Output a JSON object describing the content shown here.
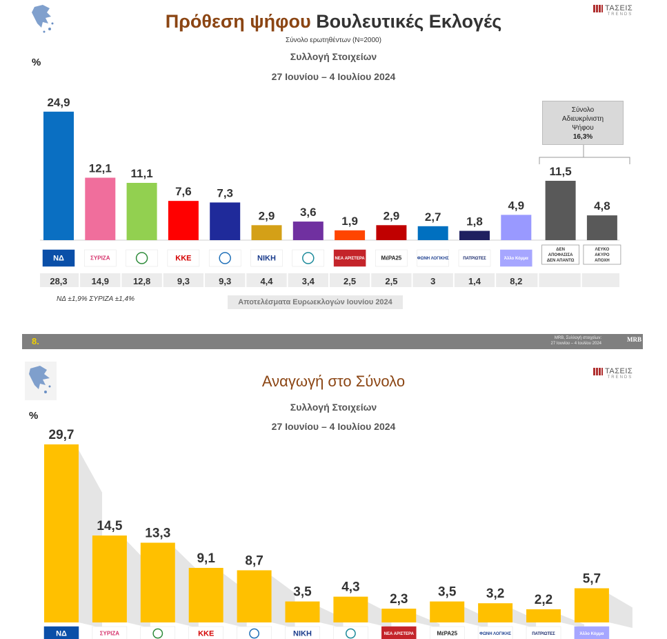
{
  "brand": {
    "name": "ΤΑΣΕΙΣ",
    "sub": "TRENDS"
  },
  "panel1": {
    "title_part1": "Πρόθεση ψήφου",
    "title_part2": "Βουλευτικές Εκλογές",
    "sample_note": "Σύνολο ερωτηθέντων (Ν=2000)",
    "subtitle": "Συλλογή Στοιχείων",
    "date": "27 Ιουνίου – 4 Ιουλίου 2024",
    "unit": "%",
    "callout": {
      "line1": "Σύνολο",
      "line2": "Αδιευκρίνιστη",
      "line3": "Ψήφου",
      "value": "16,3%"
    },
    "footnote": "ΝΔ ±1,9% ΣΥΡΙΖΑ ±1,4%",
    "euro_label": "Αποτελέσματα Ευρωεκλογών Ιουνίου 2024"
  },
  "footer": {
    "slide_number": "8.",
    "source_line1": "MRB, Συλλογή στοιχείων:",
    "source_line2": "27 Ιουνίου – 4 Ιουλίου 2024",
    "logo": "MRB"
  },
  "panel2": {
    "title": "Αναγωγή στο Σύνολο",
    "subtitle": "Συλλογή Στοιχείων",
    "date": "27 Ιουνίου – 4 Ιουλίου 2024",
    "unit": "%"
  },
  "party_logos": [
    {
      "icon": "nd-logo",
      "text": "ΝΔ",
      "bg": "#0a4fa8",
      "fg": "#ffffff"
    },
    {
      "icon": "syriza-logo",
      "text": "ΣΥΡΙΖΑ",
      "bg": "#ffffff",
      "fg": "#d6336c"
    },
    {
      "icon": "pasok-logo",
      "text": "",
      "bg": "#ffffff",
      "fg": "#2e8b3a"
    },
    {
      "icon": "kke-logo",
      "text": "ΚΚΕ",
      "bg": "#ffffff",
      "fg": "#d40000"
    },
    {
      "icon": "elliniki-lysi-logo",
      "text": "",
      "bg": "#ffffff",
      "fg": "#1e6fb8"
    },
    {
      "icon": "niki-logo",
      "text": "ΝΙΚΗ",
      "bg": "#ffffff",
      "fg": "#1a3c8c"
    },
    {
      "icon": "plefsi-logo",
      "text": "",
      "bg": "#ffffff",
      "fg": "#1b8a9a"
    },
    {
      "icon": "nea-aristera-logo",
      "text": "ΝΕΑ ΑΡΙΣΤΕΡΑ",
      "bg": "#c4242a",
      "fg": "#ffffff"
    },
    {
      "icon": "mera25-logo",
      "text": "ΜέΡΑ25",
      "bg": "#ffffff",
      "fg": "#222222"
    },
    {
      "icon": "foni-logikis-logo",
      "text": "ΦΩΝΗ ΛΟΓΙΚΗΣ",
      "bg": "#ffffff",
      "fg": "#1d3f8f"
    },
    {
      "icon": "patriotes-logo",
      "text": "ΠΑΤΡΙΩΤΕΣ",
      "bg": "#ffffff",
      "fg": "#1a2a6c"
    },
    {
      "icon": "allo-komma-logo",
      "text": "Άλλο Κόμμα",
      "bg": "#a6a6ff",
      "fg": "#ffffff"
    }
  ],
  "chart_data": [
    {
      "type": "bar",
      "title": "Πρόθεση ψήφου Βουλευτικές Εκλογές",
      "ylabel": "%",
      "ylim": [
        0,
        26
      ],
      "values": [
        24.9,
        12.1,
        11.1,
        7.6,
        7.3,
        2.9,
        3.6,
        1.9,
        2.9,
        2.7,
        1.8,
        4.9,
        11.5,
        4.8
      ],
      "value_labels": [
        "24,9",
        "12,1",
        "11,1",
        "7,6",
        "7,3",
        "2,9",
        "3,6",
        "1,9",
        "2,9",
        "2,7",
        "1,8",
        "4,9",
        "11,5",
        "4,8"
      ],
      "colors": [
        "#0a6fc2",
        "#f06e9c",
        "#92d050",
        "#ff0000",
        "#1f2a9a",
        "#d4a017",
        "#7030a0",
        "#ff4500",
        "#c00000",
        "#0070c0",
        "#1f2060",
        "#9999ff",
        "#595959",
        "#595959"
      ],
      "extra_category_labels": [
        {
          "lines": [
            "ΔΕΝ",
            "ΑΠΟΦΑΣΙΣΑ",
            "ΔΕΝ ΑΠΑΝΤΩ"
          ]
        },
        {
          "lines": [
            "ΛΕΥΚΟ",
            "ΑΚΥΡΟ",
            "ΑΠΟΧΗ"
          ]
        }
      ],
      "euro_election_labels": [
        "28,3",
        "14,9",
        "12,8",
        "9,3",
        "9,3",
        "4,4",
        "3,4",
        "2,5",
        "2,5",
        "3",
        "1,4",
        "8,2",
        "",
        ""
      ],
      "euro_election_values": [
        28.3,
        14.9,
        12.8,
        9.3,
        9.3,
        4.4,
        3.4,
        2.5,
        2.5,
        3,
        1.4,
        8.2
      ]
    },
    {
      "type": "bar",
      "title": "Αναγωγή στο Σύνολο",
      "ylabel": "%",
      "ylim": [
        0,
        30
      ],
      "values": [
        29.7,
        14.5,
        13.3,
        9.1,
        8.7,
        3.5,
        4.3,
        2.3,
        3.5,
        3.2,
        2.2,
        5.7
      ],
      "value_labels": [
        "29,7",
        "14,5",
        "13,3",
        "9,1",
        "8,7",
        "3,5",
        "4,3",
        "2,3",
        "3,5",
        "3,2",
        "2,2",
        "5,7"
      ],
      "color": "#ffc000"
    }
  ]
}
